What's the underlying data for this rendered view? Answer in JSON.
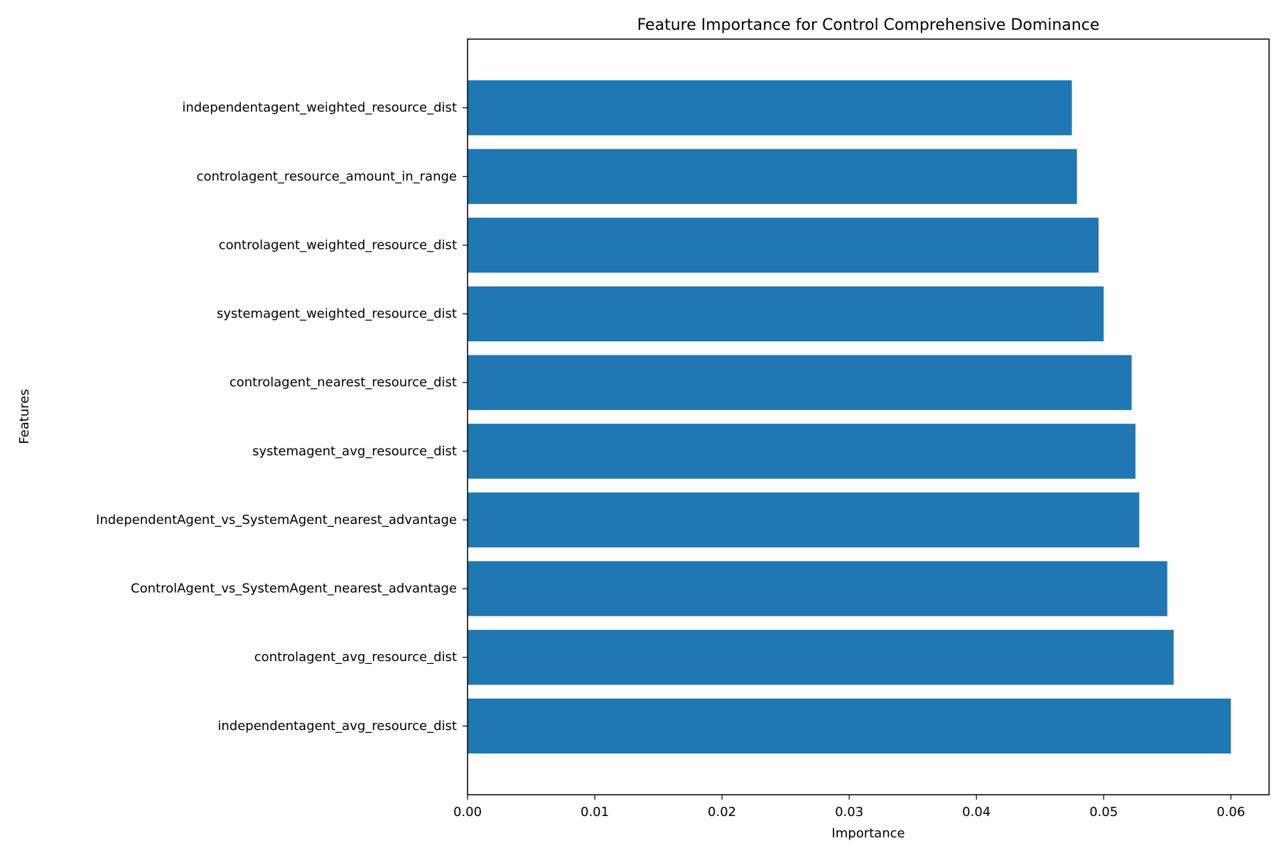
{
  "chart_data": {
    "type": "bar",
    "orientation": "horizontal",
    "title": "Feature Importance for Control Comprehensive Dominance",
    "xlabel": "Importance",
    "ylabel": "Features",
    "categories": [
      "independentagent_weighted_resource_dist",
      "controlagent_resource_amount_in_range",
      "controlagent_weighted_resource_dist",
      "systemagent_weighted_resource_dist",
      "controlagent_nearest_resource_dist",
      "systemagent_avg_resource_dist",
      "IndependentAgent_vs_SystemAgent_nearest_advantage",
      "ControlAgent_vs_SystemAgent_nearest_advantage",
      "controlagent_avg_resource_dist",
      "independentagent_avg_resource_dist"
    ],
    "values": [
      0.0475,
      0.0479,
      0.0496,
      0.05,
      0.0522,
      0.0525,
      0.0528,
      0.055,
      0.0555,
      0.06
    ],
    "xlim": [
      0.0,
      0.063
    ],
    "xticks": [
      "0.00",
      "0.01",
      "0.02",
      "0.03",
      "0.04",
      "0.05",
      "0.06"
    ],
    "grid": false,
    "legend": "none",
    "bar_color": "#1f77b4"
  }
}
